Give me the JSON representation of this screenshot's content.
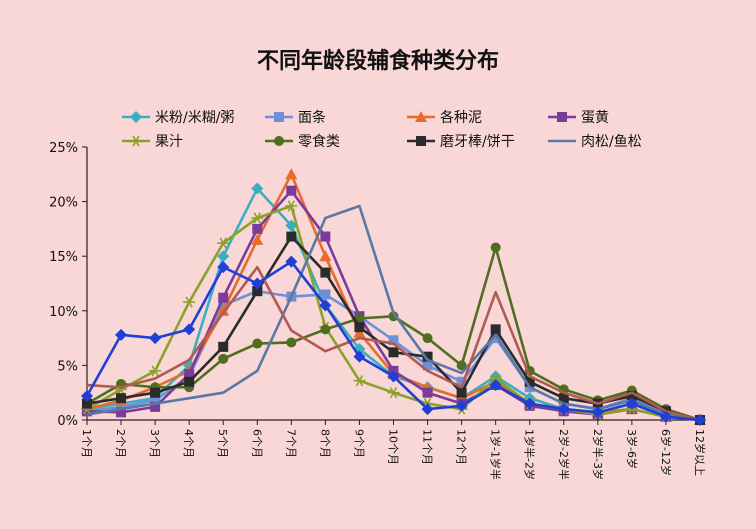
{
  "chart_data": {
    "type": "line",
    "title": "不同年龄段辅食种类分布",
    "xlabel": "",
    "ylabel": "",
    "ylim": [
      0,
      25
    ],
    "yticks": [
      "0%",
      "5%",
      "10%",
      "15%",
      "20%",
      "25%"
    ],
    "grid": false,
    "legend_position": "top",
    "categories": [
      "1个月",
      "2个月",
      "3个月",
      "4个月",
      "5个月",
      "6个月",
      "7个月",
      "8个月",
      "9个月",
      "10个月",
      "11个月",
      "12个月",
      "1岁-1岁半",
      "1岁半-2岁",
      "2岁-2岁半",
      "2岁半-3岁",
      "3岁-6岁",
      "6岁-12岁",
      "12岁以上"
    ],
    "series": [
      {
        "name": "米粉/米糊/粥",
        "color": "#3aaec0",
        "marker": "diamond",
        "values": [
          1.0,
          1.5,
          2.0,
          5.0,
          15.0,
          21.2,
          17.8,
          10.5,
          6.5,
          4.0,
          3.0,
          2.0,
          4.0,
          2.0,
          1.0,
          0.7,
          1.5,
          0.5,
          0
        ]
      },
      {
        "name": "面条",
        "color": "#6f8fd8",
        "marker": "square",
        "values": [
          0.8,
          1.2,
          1.8,
          4.0,
          10.5,
          11.8,
          11.3,
          11.5,
          9.5,
          7.3,
          5.0,
          3.5,
          7.5,
          3.0,
          1.5,
          1.0,
          2.0,
          0.5,
          0
        ]
      },
      {
        "name": "各种泥",
        "color": "#e86a2c",
        "marker": "triangle",
        "values": [
          1.0,
          1.8,
          3.0,
          4.5,
          10.0,
          16.5,
          22.5,
          15.0,
          8.0,
          4.2,
          3.0,
          2.0,
          3.5,
          1.5,
          1.0,
          0.7,
          1.0,
          0.3,
          0
        ]
      },
      {
        "name": "蛋黄",
        "color": "#7a3c9b",
        "marker": "square",
        "values": [
          0.8,
          0.7,
          1.2,
          4.2,
          11.2,
          17.5,
          21.0,
          16.8,
          9.5,
          4.5,
          2.5,
          1.5,
          3.2,
          1.3,
          0.8,
          0.5,
          1.0,
          0.3,
          0
        ]
      },
      {
        "name": "果汁",
        "color": "#8aa12a",
        "marker": "star",
        "values": [
          1.0,
          2.8,
          4.5,
          10.8,
          16.2,
          18.5,
          19.6,
          8.5,
          3.6,
          2.5,
          1.5,
          1.0,
          3.8,
          1.5,
          1.0,
          0.5,
          1.0,
          0.3,
          0
        ]
      },
      {
        "name": "零食类",
        "color": "#4f6e1f",
        "marker": "circle",
        "values": [
          1.5,
          3.3,
          3.0,
          3.0,
          5.6,
          7.0,
          7.1,
          8.3,
          9.3,
          9.5,
          7.5,
          5.0,
          15.8,
          4.5,
          2.8,
          1.8,
          2.7,
          1.0,
          0
        ]
      },
      {
        "name": "磨牙棒/饼干",
        "color": "#2b2b2b",
        "marker": "square",
        "values": [
          1.5,
          2.0,
          2.5,
          3.5,
          6.7,
          11.8,
          16.8,
          13.5,
          8.5,
          6.2,
          5.8,
          2.5,
          8.3,
          3.5,
          2.0,
          1.5,
          2.2,
          0.8,
          0
        ]
      },
      {
        "name": "肉松/鱼松",
        "color": "#5a78a6",
        "marker": "none",
        "values": [
          0.5,
          1.0,
          1.5,
          2.0,
          2.5,
          4.5,
          11.3,
          18.5,
          19.6,
          9.8,
          5.5,
          4.3,
          7.8,
          3.0,
          1.5,
          1.0,
          1.8,
          0.5,
          0
        ]
      },
      {
        "name": "",
        "color": "#b05a52",
        "marker": "none",
        "values": [
          3.2,
          3.0,
          3.8,
          5.5,
          9.8,
          14.0,
          8.2,
          6.3,
          7.5,
          7.0,
          4.5,
          3.0,
          11.7,
          4.0,
          2.5,
          1.5,
          2.5,
          0.8,
          0
        ]
      },
      {
        "name": "",
        "color": "#1f3fd6",
        "marker": "diamond",
        "values": [
          2.2,
          7.8,
          7.5,
          8.3,
          14.0,
          12.5,
          14.5,
          10.5,
          5.8,
          4.0,
          1.0,
          1.3,
          3.2,
          1.5,
          1.0,
          0.7,
          1.5,
          0.3,
          0
        ]
      }
    ]
  }
}
